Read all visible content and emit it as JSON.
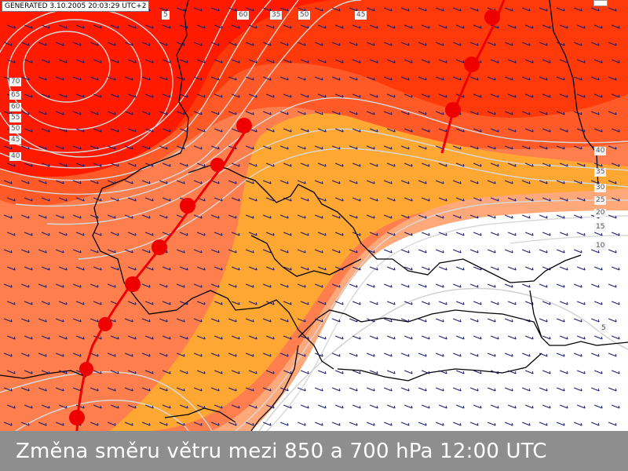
{
  "generated_stamp": "GENERATED 3.10.2005 20:03:29 UTC+2",
  "title": "Změna směru větru mezi 850 a 700 hPa  12:00 UTC",
  "colors": {
    "band_white": "#ffffff",
    "band_10_15": "#ffa97a",
    "band_15_20": "#ffa733",
    "band_20_30": "#ff7e4d",
    "band_30_40": "#ff5a28",
    "band_40_60": "#ff3a0a",
    "band_60_plus": "#ff1a00",
    "isoline": "#d8d8d8",
    "front": "#ee0000",
    "border": "#000000",
    "wind_arrow": "#1a1a66",
    "footer": "#8e8e8e"
  },
  "isoline_labels": {
    "top": [
      "5",
      "60",
      "35",
      "50",
      "45"
    ],
    "left": [
      "70",
      "65",
      "60",
      "55",
      "50",
      "45",
      "40"
    ],
    "right": [
      "40",
      "35",
      "30",
      "25",
      "20",
      "15",
      "10",
      "5"
    ]
  },
  "wind_barb_icon": "wind-barb-icon"
}
